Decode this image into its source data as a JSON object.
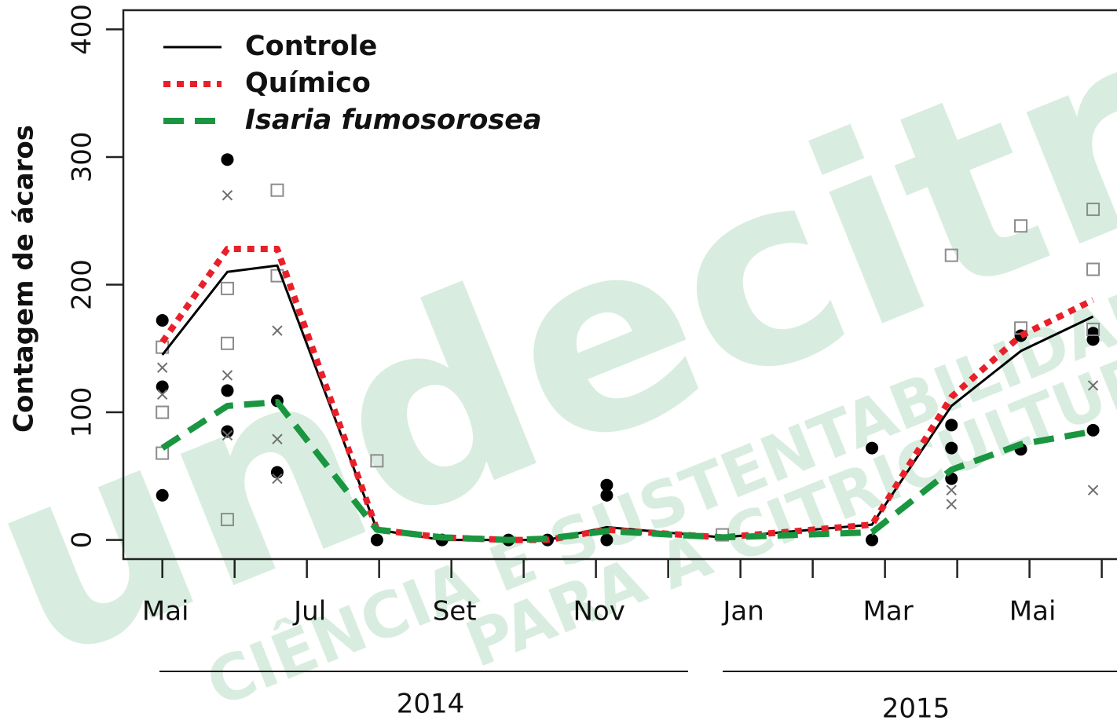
{
  "chart_data": {
    "type": "line",
    "ylabel": "Contagem de ácaros",
    "watermark": [
      "undecitrus",
      "CIÊNCIA E SUSTENTABILIDADE",
      "PARA A CITRICULTURA"
    ],
    "years": [
      "2014",
      "2015"
    ],
    "xlim": [
      -0.54,
      13.2
    ],
    "ylim": [
      -15,
      415
    ],
    "yticks": [
      0,
      100,
      200,
      300,
      400
    ],
    "xticks": [
      {
        "value": 0,
        "label": "Mai"
      },
      {
        "value": 1,
        "label": null
      },
      {
        "value": 2,
        "label": "Jul"
      },
      {
        "value": 3,
        "label": null
      },
      {
        "value": 4,
        "label": "Set"
      },
      {
        "value": 5,
        "label": null
      },
      {
        "value": 6,
        "label": "Nov"
      },
      {
        "value": 7,
        "label": null
      },
      {
        "value": 8,
        "label": "Jan"
      },
      {
        "value": 9,
        "label": null
      },
      {
        "value": 10,
        "label": "Mar"
      },
      {
        "value": 11,
        "label": null
      },
      {
        "value": 12,
        "label": "Mai"
      },
      {
        "value": 13,
        "label": null
      }
    ],
    "x": [
      0,
      0.9,
      1.59,
      2.97,
      3.87,
      4.79,
      5.33,
      6.15,
      7.75,
      9.82,
      10.92,
      11.88,
      12.88
    ],
    "series": [
      {
        "name": "Controle",
        "color": "#000000",
        "style": "solid",
        "values": [
          145,
          210,
          215,
          8,
          0,
          0,
          0,
          10,
          2,
          12,
          105,
          148,
          175
        ]
      },
      {
        "name": "Químico",
        "color": "#e8202a",
        "style": "dotted",
        "values": [
          155,
          228,
          228,
          8,
          2,
          0,
          0,
          8,
          2,
          12,
          112,
          160,
          188
        ]
      },
      {
        "name": "Isaria fumosorosea",
        "color": "#1a9641",
        "style": "dashed",
        "italic": true,
        "values": [
          72,
          105,
          108,
          8,
          2,
          0,
          1,
          7,
          2,
          6,
          55,
          75,
          85
        ]
      }
    ],
    "points": [
      {
        "marker": "circle",
        "color": "#000000",
        "x": [
          0,
          0,
          0,
          0.9,
          0.9,
          0.9,
          1.59,
          1.59,
          2.97,
          3.87,
          4.79,
          5.33,
          6.15,
          6.15,
          6.15,
          9.82,
          9.82,
          10.92,
          10.92,
          10.92,
          11.88,
          11.88,
          12.88,
          12.88,
          12.88
        ],
        "y": [
          172,
          120,
          35,
          298,
          117,
          85,
          109,
          53,
          0,
          0,
          0,
          0,
          43,
          35,
          0,
          72,
          0,
          90,
          72,
          48,
          160,
          71,
          162,
          157,
          86
        ]
      },
      {
        "marker": "square",
        "color": "#8c8c8c",
        "x": [
          0,
          0,
          0,
          0.9,
          0.9,
          0.9,
          1.59,
          1.59,
          2.97,
          7.75,
          10.92,
          11.88,
          11.88,
          12.88,
          12.88,
          12.88
        ],
        "y": [
          151,
          100,
          68,
          197,
          154,
          16,
          274,
          207,
          62,
          4,
          223,
          246,
          166,
          259,
          212,
          165
        ]
      },
      {
        "marker": "cross",
        "color": "#6e6e6e",
        "x": [
          0,
          0,
          0.9,
          0.9,
          0.9,
          1.59,
          1.59,
          1.59,
          10.92,
          10.92,
          12.88,
          12.88
        ],
        "y": [
          135,
          114,
          270,
          129,
          82,
          164,
          79,
          48,
          39,
          28,
          121,
          39
        ]
      }
    ]
  }
}
